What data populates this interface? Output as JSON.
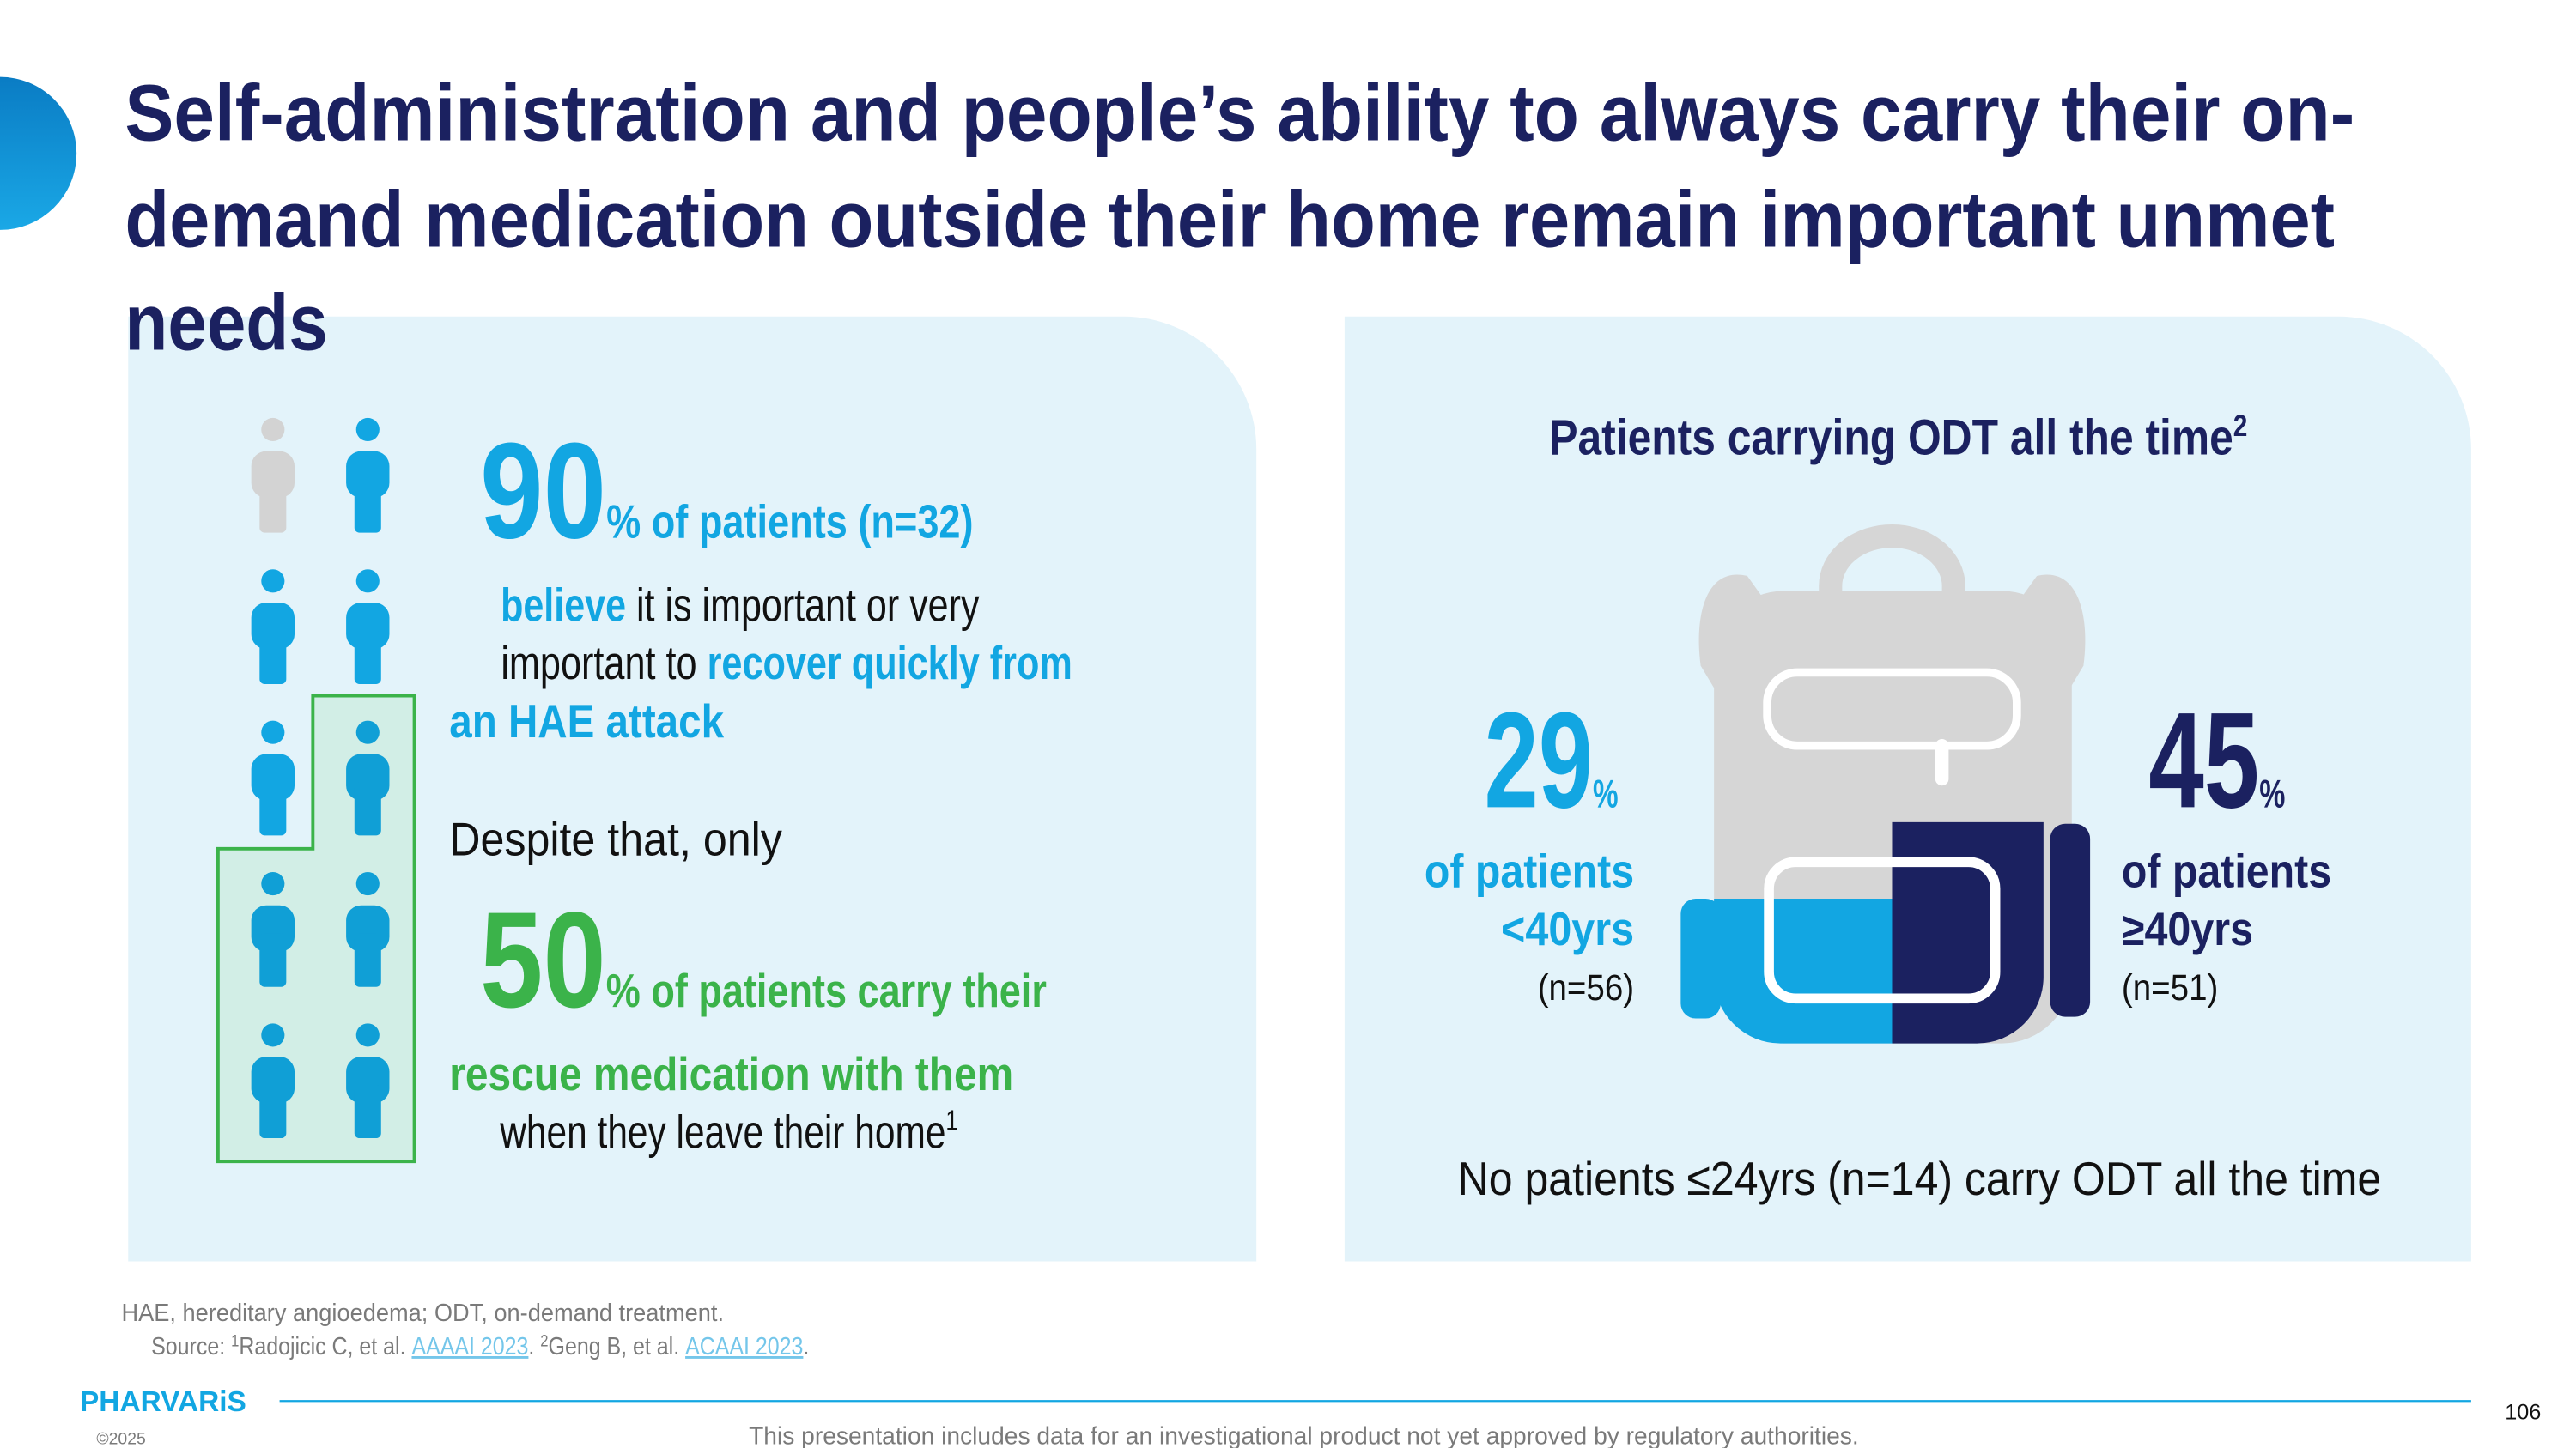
{
  "header": {
    "title_lines": [
      "Self-administration and people’s ability to always carry their on-",
      "demand medication outside their home remain important unmet",
      "needs"
    ]
  },
  "left_panel": {
    "stat_1": {
      "value": 90,
      "label": "% of patients (n=32)"
    },
    "lines_1": [
      [
        "believe",
        " it is important or very"
      ],
      [
        "important to ",
        "recover quickly from"
      ],
      [
        "an HAE attack"
      ]
    ],
    "bridge": "Despite that, only",
    "stat_2": {
      "value": 50,
      "label": "% of patients carry their"
    },
    "lines_2": [
      [
        "rescue medication with them"
      ],
      [
        "when they leave their home",
        "1"
      ]
    ]
  },
  "right_panel": {
    "title": "Patients carrying ODT all the time",
    "title_note": "2",
    "groups": [
      {
        "value": 29,
        "unit": "%",
        "label": "of patients",
        "age": "<40yrs",
        "n": "(n=56)"
      },
      {
        "value": 45,
        "unit": "%",
        "label": "of patients",
        "age": "≥40yrs",
        "n": "(n=51)"
      }
    ],
    "note": "No patients ≤24yrs (n=14) carry ODT all the time"
  },
  "footer": {
    "abbreviations": "HAE, hereditary angioedema; ODT, on-demand treatment.",
    "source": [
      "Source: ",
      "1",
      "Radojicic C, et al. ",
      "AAAAI 2023",
      ". ",
      "2",
      "Geng B, et al. ",
      "ACAAI 2023",
      "."
    ],
    "logo": "PHARVARiS",
    "copyright": "©2025",
    "disclaimer": "This presentation includes data for an investigational product not yet approved by regulatory authorities.",
    "page_number": 106
  }
}
